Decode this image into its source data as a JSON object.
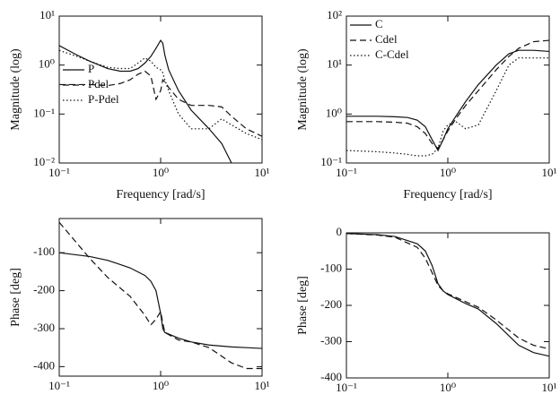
{
  "chart_data": [
    {
      "type": "line",
      "xscale": "log",
      "yscale": "log",
      "xlabel": "Frequency [rad/s]",
      "ylabel": "Magnitude (log)",
      "xlim": [
        0.1,
        10
      ],
      "ylim": [
        0.01,
        10
      ],
      "xticks": [
        {
          "value": 0.1,
          "label": "10⁻¹"
        },
        {
          "value": 1,
          "label": "10⁰"
        },
        {
          "value": 10,
          "label": "10¹"
        }
      ],
      "yticks": [
        {
          "value": 0.01,
          "label": "10⁻²"
        },
        {
          "value": 0.1,
          "label": "10⁻¹"
        },
        {
          "value": 1,
          "label": "10⁰"
        },
        {
          "value": 10,
          "label": "10¹"
        }
      ],
      "legend": "lower left",
      "x": [
        0.1,
        0.15,
        0.2,
        0.3,
        0.4,
        0.5,
        0.6,
        0.7,
        0.8,
        0.9,
        1.0,
        1.05,
        1.1,
        1.2,
        1.5,
        2,
        3,
        4,
        5,
        7,
        10
      ],
      "series": [
        {
          "name": "P",
          "color": "#111111",
          "dash": "solid",
          "values": [
            2.5,
            1.6,
            1.2,
            0.85,
            0.75,
            0.75,
            0.85,
            1.1,
            1.5,
            2.2,
            3.2,
            2.8,
            1.6,
            0.8,
            0.3,
            0.12,
            0.05,
            0.025,
            0.01,
            null,
            null
          ]
        },
        {
          "name": "Pdel",
          "color": "#111111",
          "dash": "dashed",
          "values": [
            0.4,
            0.4,
            0.4,
            0.38,
            0.42,
            0.5,
            0.65,
            0.75,
            0.6,
            0.2,
            0.3,
            0.5,
            0.45,
            0.35,
            0.2,
            0.15,
            0.15,
            0.14,
            0.09,
            0.05,
            0.035
          ]
        },
        {
          "name": "P-Pdel",
          "color": "#111111",
          "dash": "dotted",
          "values": [
            2.0,
            1.5,
            1.2,
            0.9,
            0.85,
            0.85,
            1.1,
            1.4,
            1.2,
            0.9,
            0.8,
            0.7,
            0.5,
            0.3,
            0.1,
            0.05,
            0.05,
            0.08,
            0.06,
            0.04,
            0.03
          ]
        }
      ]
    },
    {
      "type": "line",
      "xscale": "log",
      "yscale": "log",
      "xlabel": "Frequency [rad/s]",
      "ylabel": "Magnitude (log)",
      "xlim": [
        0.1,
        10
      ],
      "ylim": [
        0.1,
        100
      ],
      "xticks": [
        {
          "value": 0.1,
          "label": "10⁻¹"
        },
        {
          "value": 1,
          "label": "10⁰"
        },
        {
          "value": 10,
          "label": "10¹"
        }
      ],
      "yticks": [
        {
          "value": 0.1,
          "label": "10⁻¹"
        },
        {
          "value": 1,
          "label": "10⁰"
        },
        {
          "value": 10,
          "label": "10¹"
        },
        {
          "value": 100,
          "label": "10²"
        }
      ],
      "legend": "upper left",
      "x": [
        0.1,
        0.2,
        0.3,
        0.4,
        0.5,
        0.6,
        0.7,
        0.8,
        0.9,
        1.0,
        1.2,
        1.5,
        2,
        3,
        4,
        5,
        7,
        10
      ],
      "series": [
        {
          "name": "C",
          "color": "#111111",
          "dash": "solid",
          "values": [
            0.9,
            0.9,
            0.88,
            0.85,
            0.75,
            0.55,
            0.3,
            0.18,
            0.3,
            0.5,
            0.9,
            1.8,
            4,
            10,
            17,
            20,
            20,
            19
          ]
        },
        {
          "name": "Cdel",
          "color": "#111111",
          "dash": "dashed",
          "values": [
            0.7,
            0.7,
            0.68,
            0.65,
            0.55,
            0.4,
            0.25,
            0.2,
            0.3,
            0.45,
            0.8,
            1.5,
            3,
            8,
            15,
            22,
            30,
            32
          ]
        },
        {
          "name": "C-Cdel",
          "color": "#111111",
          "dash": "dotted",
          "values": [
            0.18,
            0.17,
            0.16,
            0.15,
            0.14,
            0.14,
            0.15,
            0.2,
            0.45,
            0.6,
            0.7,
            0.5,
            0.6,
            3,
            10,
            14,
            14,
            14
          ]
        }
      ]
    },
    {
      "type": "line",
      "xscale": "log",
      "yscale": "linear",
      "ylabel": "Phase [deg]",
      "xlim": [
        0.1,
        10
      ],
      "ylim": [
        -425,
        -10
      ],
      "xticks": [
        {
          "value": 0.1,
          "label": "10⁻¹"
        },
        {
          "value": 1,
          "label": "10⁰"
        },
        {
          "value": 10,
          "label": "10¹"
        }
      ],
      "yticks": [
        -100,
        -200,
        -300,
        -400
      ],
      "x": [
        0.1,
        0.2,
        0.3,
        0.5,
        0.7,
        0.8,
        0.9,
        1.0,
        1.05,
        1.1,
        1.5,
        2,
        3,
        5,
        7,
        10
      ],
      "series": [
        {
          "color": "#111111",
          "dash": "solid",
          "values": [
            -100,
            -110,
            -120,
            -140,
            -160,
            -175,
            -200,
            -260,
            -300,
            -310,
            -325,
            -335,
            -343,
            -348,
            -350,
            -352
          ]
        },
        {
          "color": "#111111",
          "dash": "dashed",
          "values": [
            -20,
            -115,
            -165,
            -215,
            -265,
            -290,
            -275,
            -255,
            -285,
            -310,
            -330,
            -335,
            -350,
            -390,
            -405,
            -405
          ]
        }
      ]
    },
    {
      "type": "line",
      "xscale": "log",
      "yscale": "linear",
      "ylabel": "Phase [deg]",
      "xlim": [
        0.1,
        10
      ],
      "ylim": [
        -400,
        0
      ],
      "xticks": [
        {
          "value": 0.1,
          "label": "10⁻¹"
        },
        {
          "value": 1,
          "label": "10⁰"
        },
        {
          "value": 10,
          "label": "10¹"
        }
      ],
      "yticks": [
        0,
        -100,
        -200,
        -300,
        -400
      ],
      "x": [
        0.1,
        0.2,
        0.3,
        0.5,
        0.6,
        0.7,
        0.8,
        0.9,
        1.0,
        1.5,
        2,
        3,
        5,
        7,
        10
      ],
      "series": [
        {
          "color": "#111111",
          "dash": "solid",
          "values": [
            -2,
            -5,
            -10,
            -30,
            -50,
            -90,
            -140,
            -160,
            -170,
            -195,
            -210,
            -250,
            -310,
            -330,
            -340
          ]
        },
        {
          "color": "#111111",
          "dash": "dashed",
          "values": [
            -2,
            -6,
            -12,
            -40,
            -70,
            -110,
            -145,
            -160,
            -168,
            -190,
            -205,
            -240,
            -290,
            -310,
            -320
          ]
        }
      ]
    }
  ]
}
